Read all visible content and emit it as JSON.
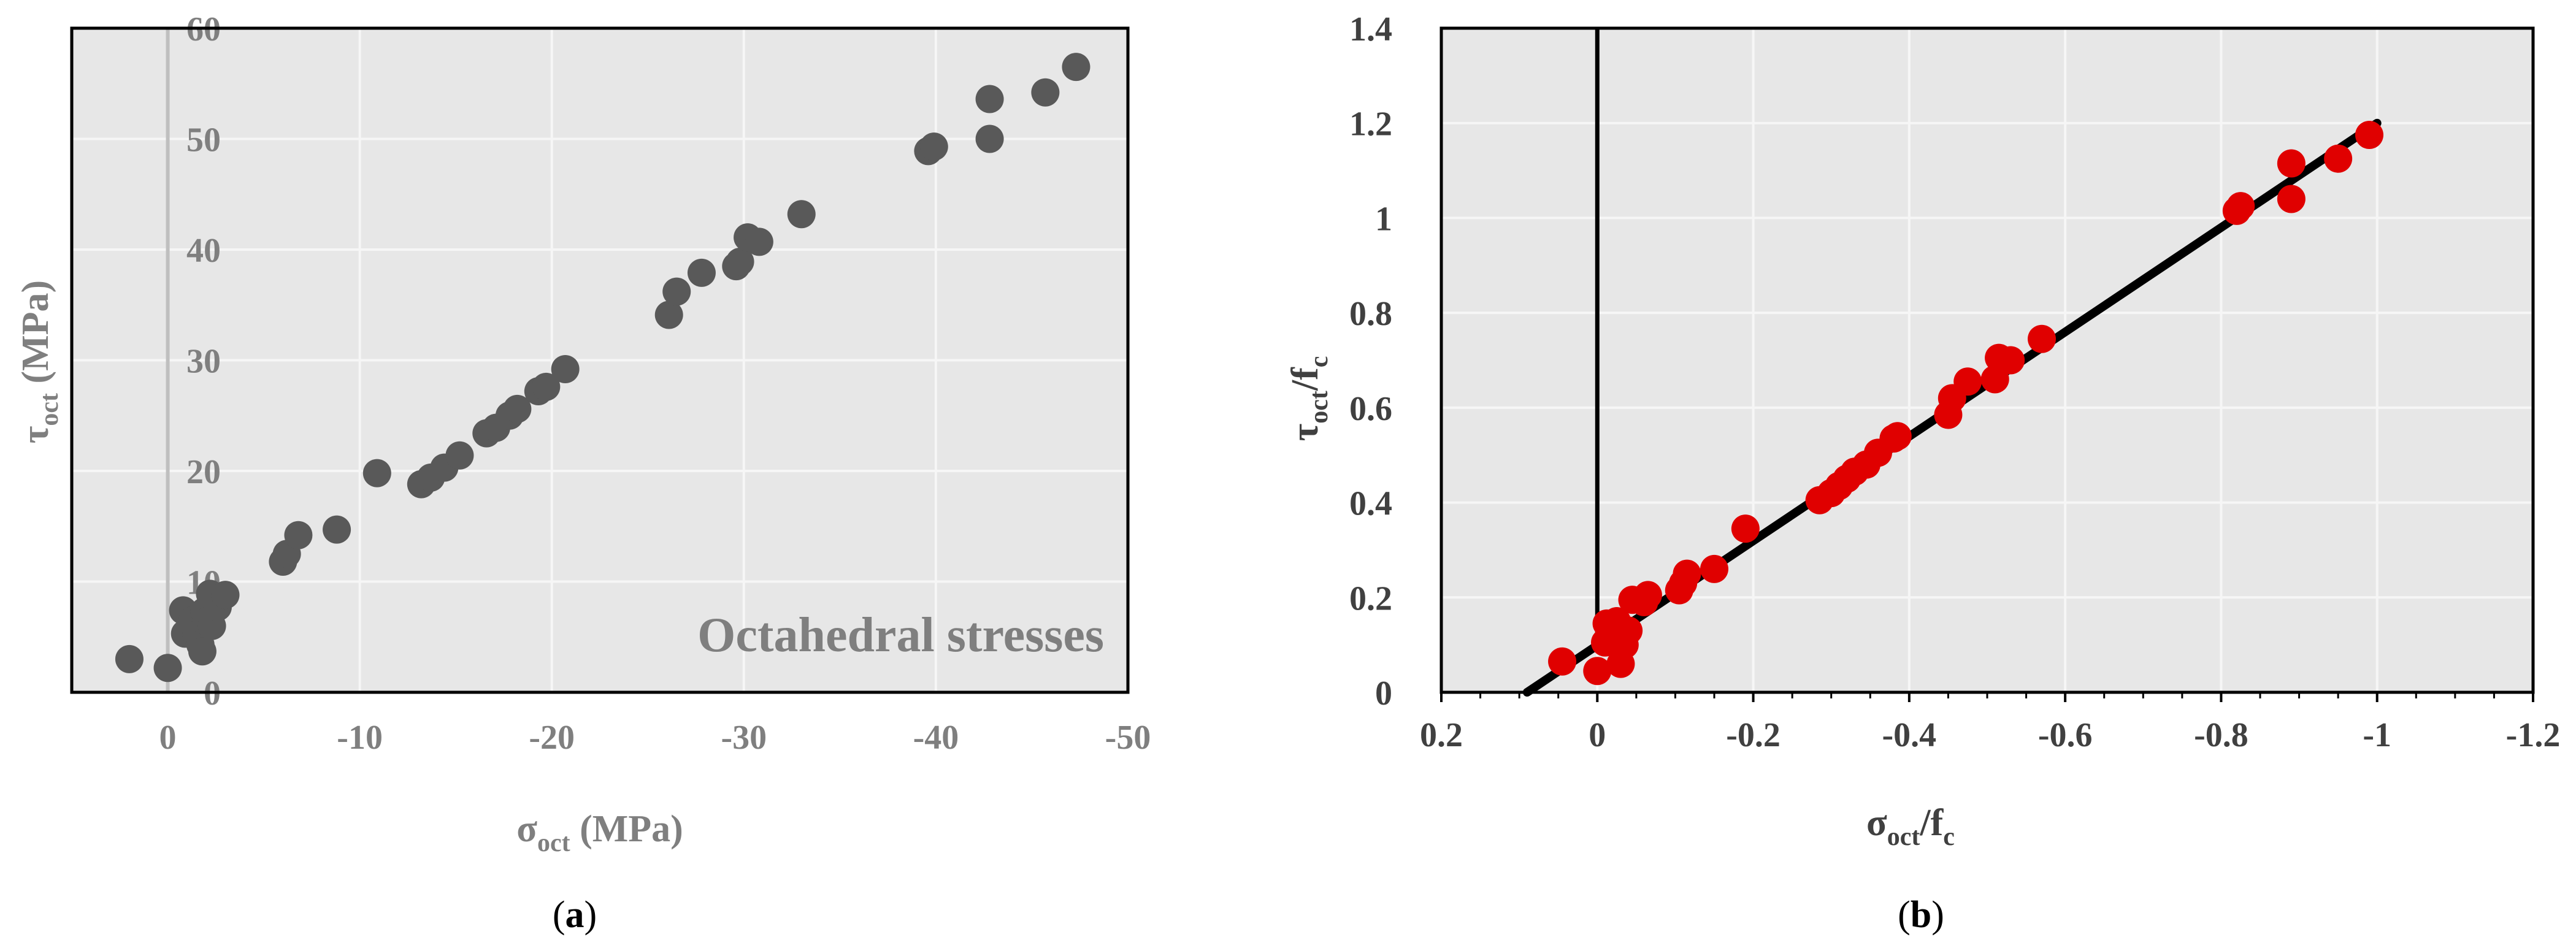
{
  "colors": {
    "plot_bg": "#e7e7e7",
    "grid": "#f6f6f6",
    "a_points": "#595959",
    "a_text": "#7f7f7f",
    "a_zero_line": "#bfbfbf",
    "b_points": "#e00000",
    "b_text": "#404040",
    "b_line": "#000000"
  },
  "chart_data": [
    {
      "type": "scatter",
      "panel_label_parts": [
        "(",
        "a",
        ")"
      ],
      "annotation": "Octahedral stresses",
      "xlabel": {
        "main": "σ",
        "sub": "oct",
        "rest": " (MPa)"
      },
      "ylabel": {
        "main": "τ",
        "sub": "oct",
        "rest": " (MPa)"
      },
      "xlim": [
        5,
        -50
      ],
      "ylim": [
        0,
        60
      ],
      "xticks": [
        0,
        -10,
        -20,
        -30,
        -40,
        -50
      ],
      "xtick_labels": [
        "0",
        "-10",
        "-20",
        "-30",
        "-40",
        "-50"
      ],
      "yticks": [
        0,
        10,
        20,
        30,
        40,
        50,
        60
      ],
      "ytick_labels": [
        "0",
        "10",
        "20",
        "30",
        "40",
        "50",
        "60"
      ],
      "grid": true,
      "series": [
        {
          "points": [
            [
              2.0,
              3.0
            ],
            [
              0.0,
              2.2
            ],
            [
              -0.8,
              7.4
            ],
            [
              -0.9,
              5.3
            ],
            [
              -1.3,
              6.5
            ],
            [
              -1.5,
              5.2
            ],
            [
              -1.7,
              4.3
            ],
            [
              -1.8,
              3.7
            ],
            [
              -1.9,
              7.3
            ],
            [
              -2.0,
              6.4
            ],
            [
              -2.2,
              8.9
            ],
            [
              -2.3,
              6.0
            ],
            [
              -2.6,
              7.7
            ],
            [
              -3.0,
              8.8
            ],
            [
              -6.0,
              11.8
            ],
            [
              -6.2,
              12.5
            ],
            [
              -6.8,
              14.2
            ],
            [
              -8.8,
              14.7
            ],
            [
              -10.9,
              19.8
            ],
            [
              -13.2,
              18.8
            ],
            [
              -13.7,
              19.4
            ],
            [
              -14.4,
              20.3
            ],
            [
              -15.2,
              21.4
            ],
            [
              -16.6,
              23.4
            ],
            [
              -17.1,
              23.9
            ],
            [
              -17.8,
              25.0
            ],
            [
              -18.2,
              25.6
            ],
            [
              -19.3,
              27.2
            ],
            [
              -19.7,
              27.6
            ],
            [
              -20.7,
              29.2
            ],
            [
              -26.1,
              34.1
            ],
            [
              -26.5,
              36.2
            ],
            [
              -27.8,
              37.9
            ],
            [
              -29.6,
              38.5
            ],
            [
              -29.8,
              38.9
            ],
            [
              -30.2,
              41.1
            ],
            [
              -30.8,
              40.7
            ],
            [
              -33.0,
              43.2
            ],
            [
              -39.6,
              48.9
            ],
            [
              -39.9,
              49.3
            ],
            [
              -42.8,
              53.6
            ],
            [
              -42.8,
              50.0
            ],
            [
              -45.7,
              54.2
            ],
            [
              -47.3,
              56.5
            ]
          ]
        }
      ]
    },
    {
      "type": "scatter",
      "panel_label_parts": [
        "(",
        "b",
        ")"
      ],
      "xlabel": {
        "main": "σ",
        "sub": "oct",
        "rest": "/f",
        "sub2": "c"
      },
      "ylabel": {
        "main": "τ",
        "sub": "oct",
        "rest": "/f",
        "sub2": "c"
      },
      "xlim": [
        0.2,
        -1.2
      ],
      "ylim": [
        0,
        1.4
      ],
      "xticks": [
        0.2,
        0,
        -0.2,
        -0.4,
        -0.6,
        -0.8,
        -1,
        -1.2
      ],
      "xtick_labels": [
        "0.2",
        "0",
        "-0.2",
        "-0.4",
        "-0.6",
        "-0.8",
        "-1",
        "-1.2"
      ],
      "yticks": [
        0,
        0.2,
        0.4,
        0.6,
        0.8,
        1,
        1.2,
        1.4
      ],
      "ytick_labels": [
        "0",
        "0.2",
        "0.4",
        "0.6",
        "0.8",
        "1",
        "1.2",
        "1.4"
      ],
      "grid": true,
      "series": [
        {
          "points": [
            [
              0.045,
              0.065
            ],
            [
              0.0,
              0.045
            ],
            [
              -0.01,
              0.105
            ],
            [
              -0.012,
              0.145
            ],
            [
              -0.02,
              0.125
            ],
            [
              -0.025,
              0.15
            ],
            [
              -0.03,
              0.06
            ],
            [
              -0.035,
              0.1
            ],
            [
              -0.04,
              0.13
            ],
            [
              -0.045,
              0.195
            ],
            [
              -0.06,
              0.19
            ],
            [
              -0.065,
              0.205
            ],
            [
              -0.105,
              0.215
            ],
            [
              -0.11,
              0.23
            ],
            [
              -0.115,
              0.25
            ],
            [
              -0.15,
              0.26
            ],
            [
              -0.19,
              0.345
            ],
            [
              -0.285,
              0.405
            ],
            [
              -0.3,
              0.42
            ],
            [
              -0.31,
              0.435
            ],
            [
              -0.32,
              0.45
            ],
            [
              -0.33,
              0.465
            ],
            [
              -0.345,
              0.48
            ],
            [
              -0.36,
              0.505
            ],
            [
              -0.38,
              0.535
            ],
            [
              -0.385,
              0.54
            ],
            [
              -0.45,
              0.585
            ],
            [
              -0.455,
              0.62
            ],
            [
              -0.475,
              0.655
            ],
            [
              -0.51,
              0.66
            ],
            [
              -0.515,
              0.705
            ],
            [
              -0.53,
              0.7
            ],
            [
              -0.57,
              0.745
            ],
            [
              -0.82,
              1.015
            ],
            [
              -0.825,
              1.025
            ],
            [
              -0.89,
              1.04
            ],
            [
              -0.89,
              1.115
            ],
            [
              -0.95,
              1.125
            ],
            [
              -0.99,
              1.175
            ]
          ]
        },
        {
          "type": "line",
          "points": [
            [
              0.09,
              0.0
            ],
            [
              -1.0,
              1.2
            ]
          ]
        }
      ]
    }
  ]
}
